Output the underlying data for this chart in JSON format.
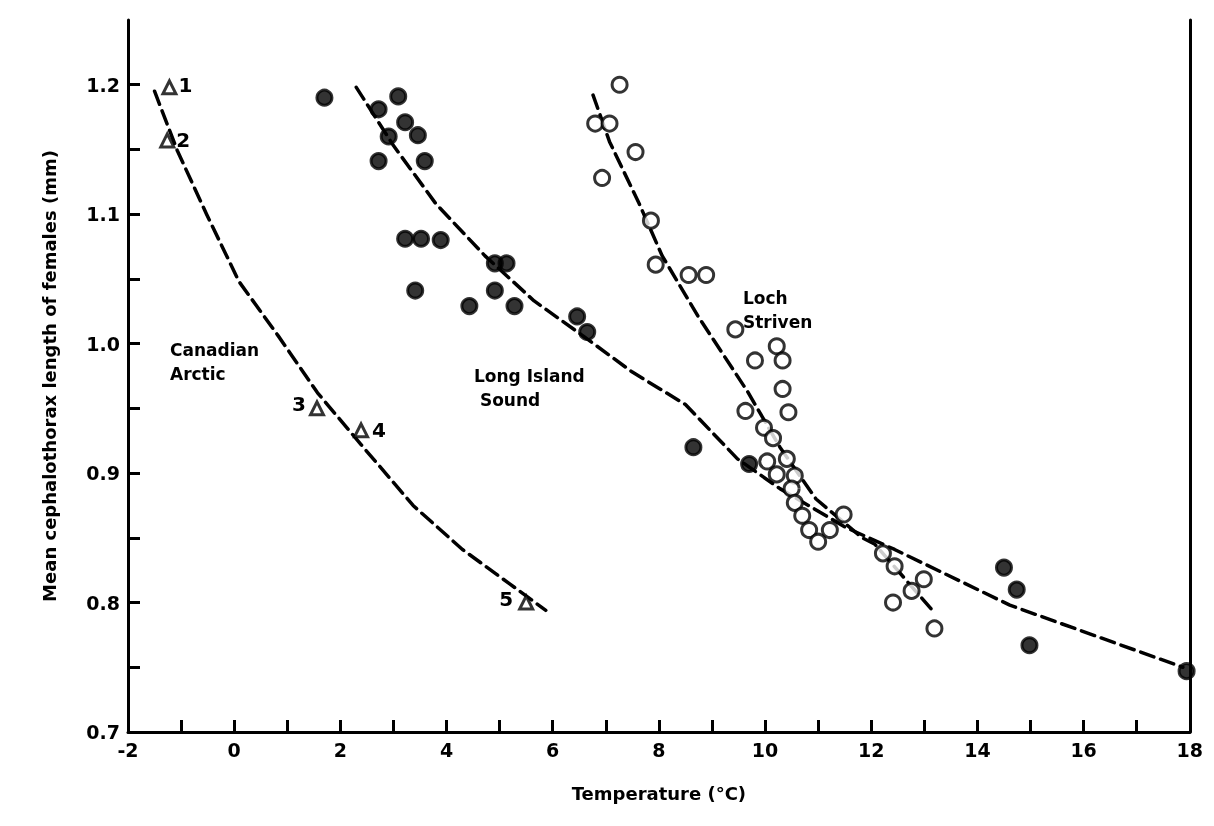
{
  "chart_data": {
    "type": "scatter",
    "xlabel": "Temperature (°C)",
    "ylabel": "Mean cephalothorax length of females (mm)",
    "xlim": [
      -2,
      18
    ],
    "ylim": [
      0.7,
      1.25
    ],
    "xticks": [
      -2,
      {
        "value": -1,
        "label": null
      },
      0,
      {
        "value": 1,
        "label": null
      },
      2,
      {
        "value": 3,
        "label": null
      },
      4,
      {
        "value": 5,
        "label": null
      },
      6,
      {
        "value": 7,
        "label": null
      },
      8,
      {
        "value": 9,
        "label": null
      },
      10,
      {
        "value": 11,
        "label": null
      },
      12,
      {
        "value": 13,
        "label": null
      },
      14,
      {
        "value": 15,
        "label": null
      },
      16,
      {
        "value": 17,
        "label": null
      },
      18
    ],
    "yticks": [
      {
        "value": 0.7,
        "label": "0.7"
      },
      {
        "value": 0.75,
        "label": null
      },
      {
        "value": 0.8,
        "label": "0.8"
      },
      {
        "value": 0.85,
        "label": null
      },
      {
        "value": 0.9,
        "label": "0.9"
      },
      {
        "value": 0.95,
        "label": null
      },
      {
        "value": 1.0,
        "label": "1.0"
      },
      {
        "value": 1.05,
        "label": null
      },
      {
        "value": 1.1,
        "label": "1.1"
      },
      {
        "value": 1.15,
        "label": null
      },
      {
        "value": 1.2,
        "label": "1.2"
      }
    ],
    "grid": false,
    "series": [
      {
        "marker": "triangle",
        "color": "#ffffff",
        "x": [
          -1.22,
          -1.26,
          1.56,
          2.39,
          5.5
        ],
        "values": [
          1.198,
          1.157,
          0.95,
          0.933,
          0.8
        ]
      },
      {
        "marker": "circle",
        "color": "#000000",
        "x": [
          1.7,
          3.09,
          2.72,
          3.22,
          2.91,
          3.46,
          2.72,
          3.59,
          3.22,
          3.52,
          3.89,
          4.91,
          5.13,
          3.41,
          4.91,
          4.43,
          5.28,
          6.46,
          6.65,
          8.65,
          9.7,
          14.5,
          14.74,
          14.98,
          17.94
        ],
        "values": [
          1.19,
          1.191,
          1.181,
          1.171,
          1.16,
          1.161,
          1.141,
          1.141,
          1.081,
          1.081,
          1.08,
          1.062,
          1.062,
          1.041,
          1.041,
          1.029,
          1.029,
          1.021,
          1.009,
          0.92,
          0.907,
          0.827,
          0.81,
          0.767,
          0.747
        ]
      },
      {
        "marker": "circle",
        "color": "#ffffff",
        "x": [
          7.26,
          6.8,
          7.07,
          7.56,
          6.93,
          7.85,
          7.94,
          8.56,
          8.89,
          9.44,
          9.81,
          10.22,
          10.33,
          10.33,
          10.44,
          9.63,
          9.98,
          10.15,
          10.41,
          10.04,
          10.22,
          10.56,
          10.5,
          10.56,
          10.7,
          10.83,
          11.0,
          11.22,
          11.48,
          12.22,
          12.44,
          12.99,
          12.76,
          12.41,
          13.19
        ],
        "values": [
          1.2,
          1.17,
          1.17,
          1.148,
          1.128,
          1.095,
          1.061,
          1.053,
          1.053,
          1.011,
          0.987,
          0.998,
          0.987,
          0.965,
          0.947,
          0.948,
          0.935,
          0.927,
          0.911,
          0.909,
          0.899,
          0.898,
          0.888,
          0.877,
          0.867,
          0.856,
          0.847,
          0.856,
          0.868,
          0.838,
          0.828,
          0.818,
          0.809,
          0.8,
          0.78
        ]
      },
      {
        "type": "line",
        "marker": "none",
        "line_style": "dashed",
        "color": "#000000",
        "x": [
          -1.5,
          -1.07,
          -0.52,
          0.09,
          0.83,
          1.57,
          2.39,
          3.37,
          4.3,
          5.17,
          5.87
        ],
        "values": [
          1.195,
          1.149,
          1.1,
          1.048,
          1.006,
          0.962,
          0.922,
          0.875,
          0.841,
          0.815,
          0.794
        ]
      },
      {
        "type": "line",
        "marker": "none",
        "line_style": "dashed",
        "color": "#000000",
        "x": [
          2.3,
          3.0,
          3.8,
          4.72,
          5.65,
          6.57,
          7.5,
          8.5,
          9.48,
          10.28,
          11.52,
          12.44,
          14.61,
          17.87
        ],
        "values": [
          1.198,
          1.153,
          1.108,
          1.068,
          1.033,
          1.006,
          0.978,
          0.953,
          0.911,
          0.888,
          0.858,
          0.841,
          0.798,
          0.75
        ]
      },
      {
        "type": "line",
        "marker": "none",
        "line_style": "dashed",
        "color": "#000000",
        "x": [
          6.76,
          7.07,
          7.63,
          8.06,
          8.74,
          9.67,
          10.28,
          10.96,
          11.83,
          12.07,
          13.13
        ],
        "values": [
          1.192,
          1.156,
          1.108,
          1.068,
          1.021,
          0.963,
          0.92,
          0.88,
          0.85,
          0.845,
          0.795
        ]
      }
    ],
    "annotations": [
      "Canadian Arctic",
      "Long Island Sound",
      "Loch Striven",
      {
        "text": "1",
        "x": -1.22,
        "y": 1.198
      },
      {
        "text": "2",
        "x": -1.26,
        "y": 1.157
      },
      {
        "text": "3",
        "x": 1.56,
        "y": 0.95
      },
      {
        "text": "4",
        "x": 2.39,
        "y": 0.933
      },
      {
        "text": "5",
        "x": 5.5,
        "y": 0.8
      }
    ]
  }
}
